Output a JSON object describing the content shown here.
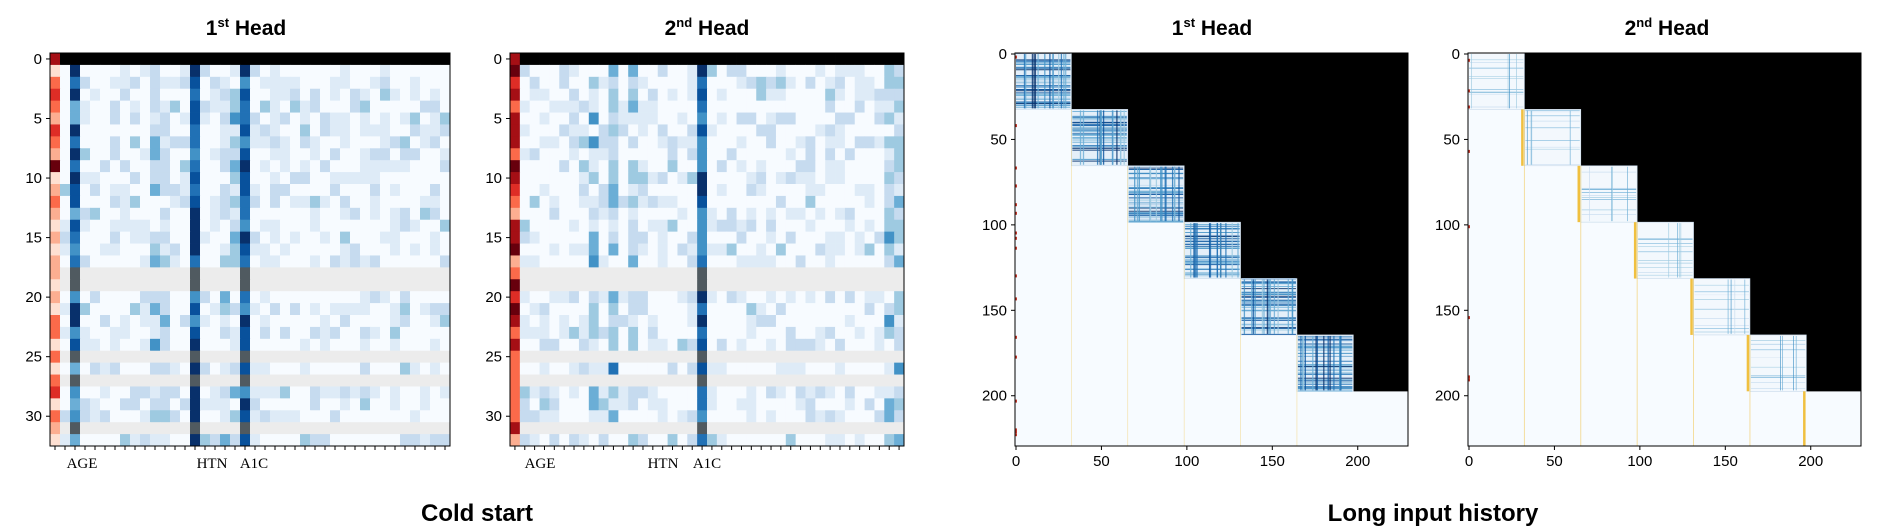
{
  "panels": {
    "cold1": {
      "title_main": "1",
      "title_sup": "st",
      "title_rest": " Head"
    },
    "cold2": {
      "title_main": "2",
      "title_sup": "nd",
      "title_rest": " Head"
    },
    "long1": {
      "title_main": "1",
      "title_sup": "st",
      "title_rest": " Head"
    },
    "long2": {
      "title_main": "2",
      "title_sup": "nd",
      "title_rest": " Head"
    }
  },
  "groups": {
    "cold_start": "Cold start",
    "long_history": "Long input history"
  },
  "colors": {
    "red_scale": [
      "#fee0d2",
      "#fcae91",
      "#fb6a4a",
      "#de2d26",
      "#a50f15",
      "#67000d"
    ],
    "blue_scale": [
      "#f7fbff",
      "#deebf7",
      "#c6dbef",
      "#9ecae1",
      "#6baed6",
      "#4292c6",
      "#2171b5",
      "#08519c",
      "#08306b"
    ],
    "masked": "#000000",
    "gray_row": "#ececec",
    "boundary": "#f0c040"
  },
  "chart_data": [
    {
      "type": "heatmap",
      "title": "1st Head",
      "group": "Cold start",
      "y_ticks": [
        0,
        5,
        10,
        15,
        20,
        25,
        30
      ],
      "ylim": [
        0,
        32
      ],
      "x_feature_labels": [
        "AGE",
        "HTN",
        "A1C"
      ],
      "n_rows": 33,
      "n_cols": 40,
      "strong_columns": {
        "AGE": 2,
        "HTN": 14,
        "A1C": 19
      },
      "first_column": "red scale (attention to first token)",
      "gray_rows": [
        18,
        19,
        25,
        27,
        31
      ]
    },
    {
      "type": "heatmap",
      "title": "2nd Head",
      "group": "Cold start",
      "y_ticks": [
        0,
        5,
        10,
        15,
        20,
        25,
        30
      ],
      "ylim": [
        0,
        32
      ],
      "x_feature_labels": [
        "AGE",
        "HTN",
        "A1C"
      ],
      "n_rows": 33,
      "n_cols": 40,
      "strong_columns": {
        "A1C": 19
      },
      "first_column": "red scale (attention to first token)",
      "gray_rows": [
        18,
        19,
        25,
        27,
        31
      ]
    },
    {
      "type": "heatmap",
      "title": "1st Head",
      "group": "Long input history",
      "x_ticks": [
        0,
        50,
        100,
        150,
        200
      ],
      "y_ticks": [
        0,
        50,
        100,
        150,
        200
      ],
      "xlim": [
        0,
        230
      ],
      "ylim": [
        0,
        230
      ],
      "block_boundaries": [
        0,
        33,
        66,
        99,
        132,
        165,
        198,
        230
      ],
      "upper_triangle": "masked (black)"
    },
    {
      "type": "heatmap",
      "title": "2nd Head",
      "group": "Long input history",
      "x_ticks": [
        0,
        50,
        100,
        150,
        200
      ],
      "y_ticks": [
        0,
        50,
        100,
        150,
        200
      ],
      "xlim": [
        0,
        230
      ],
      "ylim": [
        0,
        230
      ],
      "block_boundaries": [
        0,
        33,
        66,
        99,
        132,
        165,
        198,
        230
      ],
      "upper_triangle": "masked (black)"
    }
  ]
}
